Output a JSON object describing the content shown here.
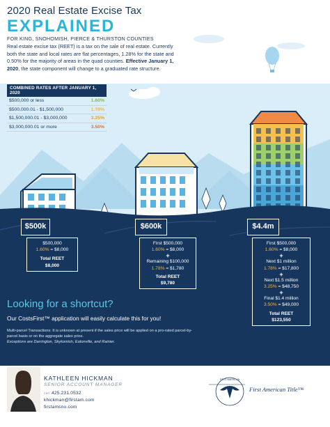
{
  "header": {
    "title": "2020 Real Estate Excise Tax",
    "big_title": "EXPLAINED",
    "subtitle": "FOR KING, SNOHOMISH, PIERCE & THURSTON COUNTIES"
  },
  "intro": {
    "text": "Real estate excise tax (REET) is a tax on the sale of real estate. Currently both the state and local rates are flat percentages, 1.28% for the state and 0.50% for the majority of areas in the quad counties. ",
    "bold": "Effective January 1, 2020",
    "tail": ", the state component will change to a graduated rate structure."
  },
  "rates": {
    "header": "COMBINED RATES AFTER JANUARY 1, 2020",
    "rows": [
      {
        "range": "$500,000 or less",
        "rate": "1.60%",
        "color": "#7fc241"
      },
      {
        "range": "$500,000.01 - $1,500,000",
        "rate": "1.78%",
        "color": "#f4b63f"
      },
      {
        "range": "$1,500,000.01 - $3,000,000",
        "rate": "3.25%",
        "color": "#e8a21a"
      },
      {
        "range": "$3,000,000.01 or more",
        "rate": "3.50%",
        "color": "#e0702a"
      }
    ]
  },
  "examples": [
    {
      "price": "$500k",
      "lines": [
        "$500,000"
      ],
      "rate_line": {
        "rate": "1.60%",
        "rest": " = $8,000"
      },
      "total_label": "Total REET",
      "total": "$8,000"
    },
    {
      "price": "$600k",
      "first": "First $500,000",
      "first_rate": {
        "rate": "1.60%",
        "rest": " = $8,000"
      },
      "second": "Remaining $100,000",
      "second_rate": {
        "rate": "1.78%",
        "rest": " = $1,780"
      },
      "total_label": "Total REET",
      "total": "$9,780"
    },
    {
      "price": "$4.4m",
      "first": "First $500,000",
      "first_rate": {
        "rate": "1.60%",
        "rest": " = $8,000"
      },
      "second": "Next $1 million",
      "second_rate": {
        "rate": "1.78%",
        "rest": " = $17,800"
      },
      "third": "Next $1.5 million",
      "third_rate": {
        "rate": "3.25%",
        "rest": " = $48,750"
      },
      "fourth": "Final $1.4 million",
      "fourth_rate": {
        "rate": "3.50%",
        "rest": " = $49,000"
      },
      "total_label": "Total REET",
      "total": "$123,550"
    }
  ],
  "shortcut": {
    "title": "Looking for a shortcut?",
    "subtitle": "Our CostsFirst™ application will easily calculate this for you!",
    "multi": "Multi-parcel Transactions: It is unknown at present if the sales price will be applied on a pro-rated parcel-by-parcel basis or on the aggregate sales price.",
    "exceptions": "Exceptions are Darrington, Skykomish, Eatonville, and Rainier."
  },
  "agent": {
    "name": "KATHLEEN HICKMAN",
    "role": "SENIOR ACCOUNT MANAGER",
    "cell_label": "cell",
    "phone": "425.231.0532",
    "email": "khickman@firstam.com",
    "website": "firstamsno.com"
  },
  "brand": {
    "name": "First American Title™",
    "seal_text": "FIRST AMERICAN"
  },
  "colors": {
    "navy": "#17365d",
    "sky": "#cfe9f7",
    "accent": "#2bb3d8",
    "rate_highlight": "#f4b63f"
  }
}
